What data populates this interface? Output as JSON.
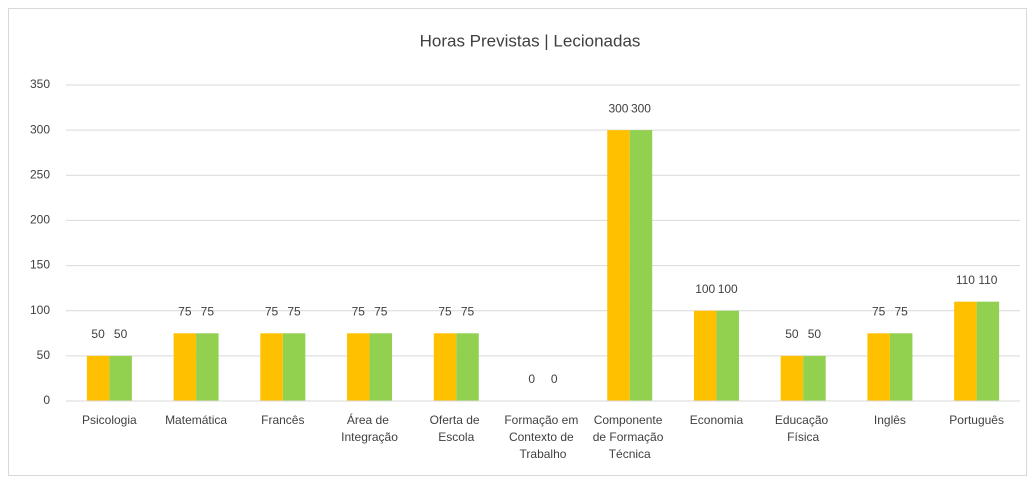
{
  "chart_data": {
    "type": "bar",
    "title": "Horas Previstas | Lecionadas",
    "categories": [
      "Psicologia",
      "Matemática",
      "Francês",
      "Área de Integração",
      "Oferta de Escola",
      "Formação em Contexto de Trabalho",
      "Componente de Formação Técnica",
      "Economia",
      "Educação Física",
      "Inglês",
      "Português"
    ],
    "series": [
      {
        "color": "#FFC000",
        "values": [
          50,
          75,
          75,
          75,
          75,
          0,
          300,
          100,
          50,
          75,
          110
        ]
      },
      {
        "color": "#92D050",
        "values": [
          50,
          75,
          75,
          75,
          75,
          0,
          300,
          100,
          50,
          75,
          110
        ]
      }
    ],
    "ylim": [
      0,
      350
    ],
    "yticks": [
      0,
      50,
      100,
      150,
      200,
      250,
      300,
      350
    ],
    "grid": true
  }
}
